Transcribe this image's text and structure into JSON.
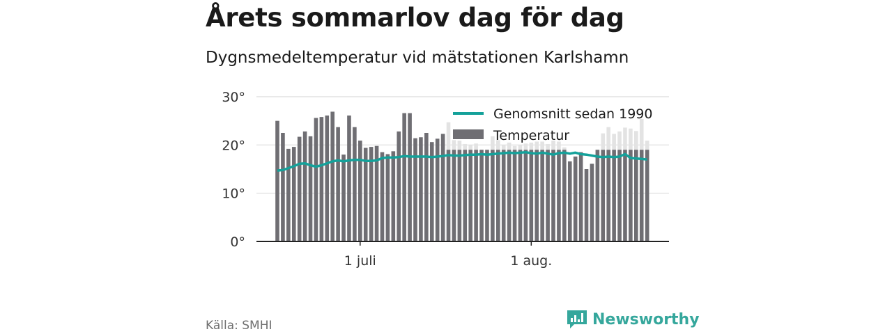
{
  "title": "Årets sommarlov dag för dag",
  "subtitle": "Dygnsmedeltemperatur vid mätstationen Karlshamn",
  "source": "Källa: SMHI",
  "brand": "Newsworthy",
  "colors": {
    "bar": "#6f6e73",
    "bar_faded": "#e3e3e3",
    "line": "#14a19a",
    "brand": "#35a79c"
  },
  "chart_data": {
    "type": "bar",
    "ylim": [
      0,
      30
    ],
    "y_ticks": [
      {
        "value": 0,
        "label": "0°"
      },
      {
        "value": 10,
        "label": "10°"
      },
      {
        "value": 20,
        "label": "20°"
      },
      {
        "value": 30,
        "label": "30°"
      }
    ],
    "x_ticks": [
      {
        "index": 15,
        "label": "1 juli"
      },
      {
        "index": 46,
        "label": "1 aug."
      }
    ],
    "grid": true,
    "legend_position": "top-right",
    "series": [
      {
        "name": "Temperatur",
        "type": "bar",
        "note_values": "values from index 30 onward are faded (past), dark portion is 19 for those days",
        "values": [
          25.0,
          22.5,
          19.2,
          19.6,
          21.7,
          22.8,
          21.8,
          25.6,
          25.8,
          26.1,
          26.9,
          23.7,
          18.0,
          26.1,
          23.7,
          20.9,
          19.4,
          19.6,
          19.8,
          18.5,
          18.1,
          18.7,
          22.8,
          26.6,
          26.6,
          21.4,
          21.6,
          22.5,
          20.6,
          21.3,
          22.3,
          24.7,
          21.0,
          20.9,
          20.2,
          20.0,
          20.3,
          19.0,
          19.0,
          21.8,
          21.0,
          20.0,
          20.5,
          19.8,
          20.0,
          20.3,
          20.5,
          20.7,
          20.7,
          20.2,
          20.9,
          20.7,
          19.5,
          16.6,
          17.6,
          18.5,
          15.0,
          16.1,
          19.0,
          22.4,
          23.7,
          22.3,
          22.8,
          23.6,
          23.4,
          22.9,
          25.4,
          20.9
        ]
      },
      {
        "name": "Genomsnitt sedan 1990",
        "type": "line",
        "values": [
          14.7,
          14.8,
          15.2,
          15.6,
          16.1,
          16.2,
          15.8,
          15.5,
          15.8,
          16.2,
          16.6,
          16.8,
          16.6,
          16.8,
          16.9,
          16.9,
          16.7,
          16.7,
          16.8,
          17.3,
          17.4,
          17.4,
          17.5,
          17.7,
          17.6,
          17.6,
          17.6,
          17.6,
          17.5,
          17.6,
          17.7,
          17.9,
          17.8,
          17.8,
          17.9,
          18.0,
          18.0,
          18.1,
          18.0,
          18.1,
          18.2,
          18.3,
          18.4,
          18.3,
          18.4,
          18.5,
          18.3,
          18.2,
          18.4,
          18.2,
          18.0,
          18.3,
          18.4,
          18.2,
          18.4,
          18.1,
          18.0,
          17.8,
          17.6,
          17.5,
          17.6,
          17.5,
          17.6,
          18.1,
          17.3,
          17.2,
          17.1,
          17.0
        ]
      }
    ]
  }
}
